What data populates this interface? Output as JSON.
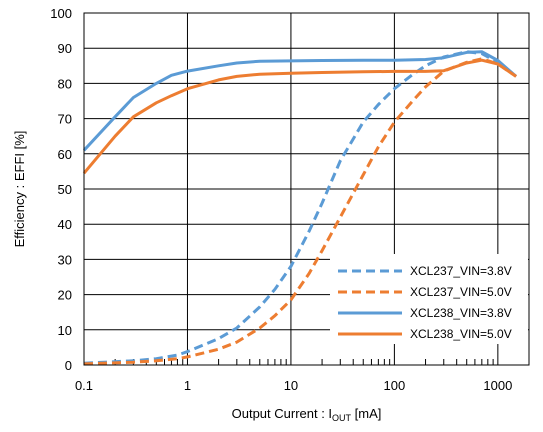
{
  "chart_data": {
    "type": "line",
    "title": "",
    "xlabel_prefix": "Output Current : I",
    "xlabel_sub": "OUT",
    "xlabel_suffix": " [mA]",
    "ylabel": "Efficiency : EFFI  [%]",
    "x_scale": "log",
    "xlim": [
      0.1,
      2000
    ],
    "ylim": [
      0,
      100
    ],
    "x_ticks": [
      0.1,
      1,
      10,
      100,
      1000
    ],
    "x_tick_labels": [
      "0.1",
      "1",
      "10",
      "100",
      "1000"
    ],
    "y_ticks": [
      0,
      10,
      20,
      30,
      40,
      50,
      60,
      70,
      80,
      90,
      100
    ],
    "y_tick_labels": [
      "0",
      "10",
      "20",
      "30",
      "40",
      "50",
      "60",
      "70",
      "80",
      "90",
      "100"
    ],
    "grid": true,
    "legend_position": "bottom-right",
    "series": [
      {
        "name": "XCL237_VIN=3.8V",
        "color": "#5b9bd5",
        "dash": true,
        "x": [
          0.1,
          0.3,
          0.5,
          0.8,
          1,
          2,
          3,
          5,
          7,
          10,
          15,
          20,
          30,
          50,
          70,
          100,
          150,
          200,
          300,
          500,
          700,
          1000,
          1500
        ],
        "y": [
          0.5,
          1.2,
          1.8,
          2.8,
          3.8,
          7.5,
          10.5,
          16.5,
          21.5,
          28,
          38,
          46,
          58,
          69,
          74,
          78.5,
          82.5,
          85,
          87.5,
          89,
          88.5,
          86,
          82
        ]
      },
      {
        "name": "XCL237_VIN=5.0V",
        "color": "#ed7d31",
        "dash": true,
        "x": [
          0.1,
          0.3,
          0.5,
          0.8,
          1,
          2,
          3,
          5,
          7,
          10,
          15,
          20,
          30,
          50,
          70,
          100,
          150,
          200,
          300,
          500,
          700,
          1000,
          1500
        ],
        "y": [
          0.3,
          0.8,
          1.2,
          1.8,
          2.3,
          4.5,
          6.5,
          10.5,
          14,
          18.5,
          26,
          32.5,
          42,
          54,
          62,
          69,
          75,
          79,
          83.5,
          86,
          87,
          85.5,
          82
        ]
      },
      {
        "name": "XCL238_VIN=3.8V",
        "color": "#5b9bd5",
        "dash": false,
        "x": [
          0.1,
          0.2,
          0.3,
          0.5,
          0.7,
          1,
          2,
          3,
          5,
          10,
          20,
          50,
          100,
          200,
          300,
          500,
          700,
          1000,
          1500
        ],
        "y": [
          61,
          70.5,
          76,
          80,
          82.3,
          83.5,
          85,
          85.8,
          86.3,
          86.4,
          86.5,
          86.6,
          86.6,
          86.8,
          87.3,
          88.8,
          89,
          86.5,
          82
        ]
      },
      {
        "name": "XCL238_VIN=5.0V",
        "color": "#ed7d31",
        "dash": false,
        "x": [
          0.1,
          0.2,
          0.3,
          0.5,
          0.7,
          1,
          2,
          3,
          5,
          10,
          20,
          50,
          100,
          200,
          300,
          500,
          700,
          1000,
          1500
        ],
        "y": [
          54.5,
          65,
          70.5,
          74.5,
          76.5,
          78.5,
          81,
          82,
          82.6,
          82.9,
          83.1,
          83.3,
          83.4,
          83.4,
          83.6,
          85.8,
          86.6,
          85.5,
          82
        ]
      }
    ]
  }
}
